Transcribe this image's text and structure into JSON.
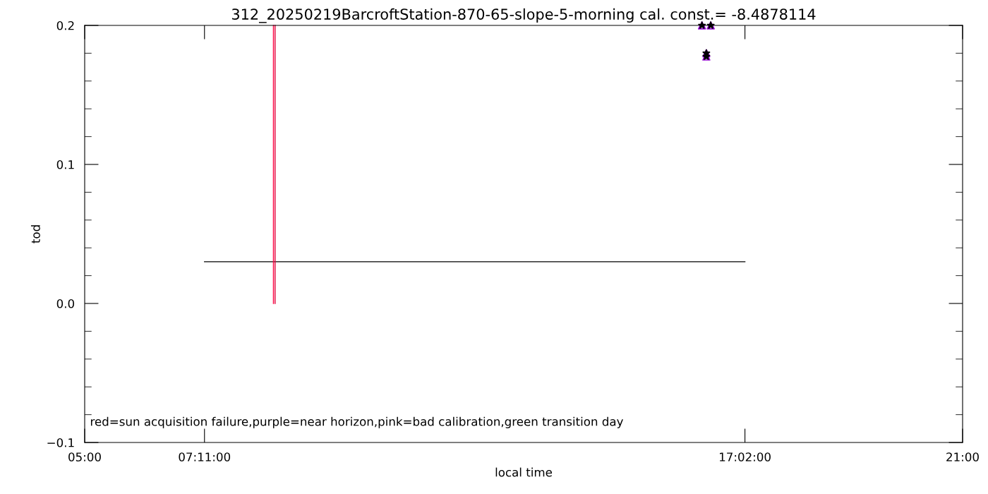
{
  "chart_data": {
    "type": "line",
    "title": "312_20250219BarcroftStation-870-65-slope-5-morning cal. const.= -8.4878114",
    "xlabel": "local time",
    "ylabel": "tod",
    "xlim": [
      5,
      21
    ],
    "xticks": [
      {
        "value": 5,
        "label": "05:00"
      },
      {
        "value": 7.1833,
        "label": "07:11:00"
      },
      {
        "value": 17.0333,
        "label": "17:02:00"
      },
      {
        "value": 21,
        "label": "21:00"
      }
    ],
    "ylim": [
      -0.1,
      0.2
    ],
    "yticks": [
      {
        "value": -0.1,
        "label": "−0.1"
      },
      {
        "value": 0,
        "label": "0.0"
      },
      {
        "value": 0.1,
        "label": "0.1"
      },
      {
        "value": 0.2,
        "label": "0.2"
      }
    ],
    "grid": false,
    "legend": false,
    "series": [
      {
        "color": "#000000",
        "x": [
          7.1833,
          17.0333
        ],
        "values": [
          0.03,
          0.03
        ]
      },
      {
        "color": "#ff0040",
        "x": [
          8.44,
          8.44
        ],
        "values": [
          0,
          0.2
        ]
      },
      {
        "color": "#e0003a",
        "x": [
          8.47,
          8.47
        ],
        "values": [
          0,
          0.2
        ]
      },
      {
        "type": "scatter",
        "color": "#9400d3",
        "marker": "triangle",
        "x": [
          16.25,
          16.41,
          16.33,
          16.33
        ],
        "values": [
          0.2,
          0.2,
          0.18,
          0.1776
        ]
      },
      {
        "type": "scatter",
        "color": "#000000",
        "marker": "star",
        "x": [
          16.25,
          16.41,
          16.33,
          16.33
        ],
        "values": [
          0.2,
          0.2,
          0.18,
          0.1776
        ]
      }
    ],
    "annotations": [
      "red=sun acquisition failure,purple=near horizon,pink=bad calibration,green transition day"
    ]
  }
}
